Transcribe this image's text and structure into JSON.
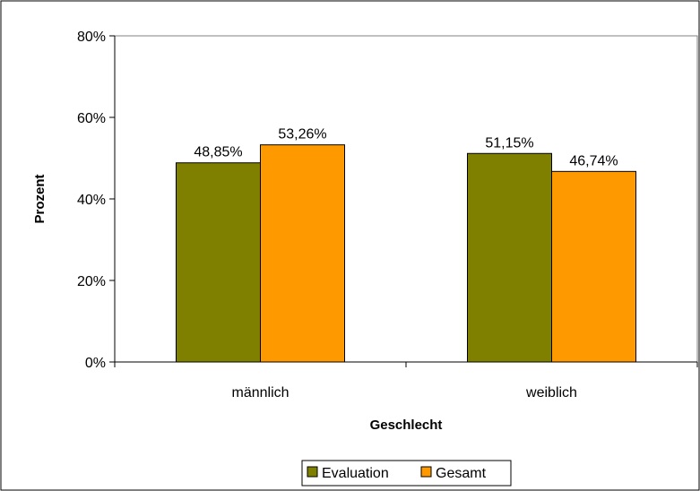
{
  "chart_data": {
    "type": "bar",
    "categories": [
      "männlich",
      "weiblich"
    ],
    "series": [
      {
        "name": "Evaluation",
        "values": [
          48.85,
          51.15
        ],
        "labels": [
          "48,85%",
          "51,15%"
        ],
        "color": "#808000"
      },
      {
        "name": "Gesamt",
        "values": [
          53.26,
          46.74
        ],
        "labels": [
          "53,26%",
          "46,74%"
        ],
        "color": "#FF9900"
      }
    ],
    "title": "",
    "xlabel": "Geschlecht",
    "ylabel": "Prozent",
    "ylim": [
      0,
      80
    ],
    "yticks": [
      {
        "value": 0,
        "label": "0%"
      },
      {
        "value": 20,
        "label": "20%"
      },
      {
        "value": 40,
        "label": "40%"
      },
      {
        "value": 60,
        "label": "60%"
      },
      {
        "value": 80,
        "label": "80%"
      }
    ],
    "grid": false,
    "legend_position": "bottom"
  }
}
